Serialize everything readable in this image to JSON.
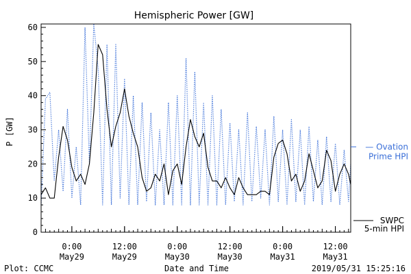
{
  "chart_data": {
    "type": "line",
    "title": "Hemispheric Power [GW]",
    "ylabel": "P [GW]",
    "xlabel": "Date and Time",
    "ylim": [
      0,
      61
    ],
    "xlim": [
      "2019-05-28 17:00",
      "2019-05-31 15:30"
    ],
    "y_ticks": [
      0,
      10,
      20,
      30,
      40,
      50,
      60
    ],
    "x_ticks": [
      {
        "time": "2019-05-29 00:00",
        "line1": "0:00",
        "line2": "May29"
      },
      {
        "time": "2019-05-29 12:00",
        "line1": "12:00",
        "line2": "May29"
      },
      {
        "time": "2019-05-30 00:00",
        "line1": "0:00",
        "line2": "May30"
      },
      {
        "time": "2019-05-30 12:00",
        "line1": "12:00",
        "line2": "May30"
      },
      {
        "time": "2019-05-31 00:00",
        "line1": "0:00",
        "line2": "May31"
      },
      {
        "time": "2019-05-31 12:00",
        "line1": "12:00",
        "line2": "May31"
      }
    ],
    "grid": false,
    "legend_position": "right",
    "series": [
      {
        "name": "SWPC 5-min HPI",
        "label_lines": [
          "SWPC",
          "5-min HPI"
        ],
        "color": "#000000",
        "style": "solid",
        "points": [
          [
            "2019-05-28 17:00",
            11
          ],
          [
            "2019-05-28 18:00",
            13
          ],
          [
            "2019-05-28 19:00",
            10
          ],
          [
            "2019-05-28 20:00",
            10
          ],
          [
            "2019-05-28 21:00",
            22
          ],
          [
            "2019-05-28 22:00",
            31
          ],
          [
            "2019-05-28 23:00",
            27
          ],
          [
            "2019-05-29 00:00",
            19
          ],
          [
            "2019-05-29 01:00",
            15
          ],
          [
            "2019-05-29 02:00",
            17
          ],
          [
            "2019-05-29 03:00",
            14
          ],
          [
            "2019-05-29 04:00",
            20
          ],
          [
            "2019-05-29 05:00",
            35
          ],
          [
            "2019-05-29 06:00",
            55
          ],
          [
            "2019-05-29 07:00",
            52
          ],
          [
            "2019-05-29 08:00",
            36
          ],
          [
            "2019-05-29 09:00",
            25
          ],
          [
            "2019-05-29 10:00",
            31
          ],
          [
            "2019-05-29 11:00",
            35
          ],
          [
            "2019-05-29 12:00",
            42
          ],
          [
            "2019-05-29 13:00",
            34
          ],
          [
            "2019-05-29 14:00",
            29
          ],
          [
            "2019-05-29 15:00",
            25
          ],
          [
            "2019-05-29 16:00",
            16
          ],
          [
            "2019-05-29 17:00",
            12
          ],
          [
            "2019-05-29 18:00",
            13
          ],
          [
            "2019-05-29 19:00",
            17
          ],
          [
            "2019-05-29 20:00",
            15
          ],
          [
            "2019-05-29 21:00",
            20
          ],
          [
            "2019-05-29 22:00",
            11
          ],
          [
            "2019-05-29 23:00",
            18
          ],
          [
            "2019-05-30 00:00",
            20
          ],
          [
            "2019-05-30 01:00",
            14
          ],
          [
            "2019-05-30 02:00",
            25
          ],
          [
            "2019-05-30 03:00",
            33
          ],
          [
            "2019-05-30 04:00",
            28
          ],
          [
            "2019-05-30 05:00",
            25
          ],
          [
            "2019-05-30 06:00",
            29
          ],
          [
            "2019-05-30 07:00",
            19
          ],
          [
            "2019-05-30 08:00",
            15
          ],
          [
            "2019-05-30 09:00",
            15
          ],
          [
            "2019-05-30 10:00",
            13
          ],
          [
            "2019-05-30 11:00",
            16
          ],
          [
            "2019-05-30 12:00",
            13
          ],
          [
            "2019-05-30 13:00",
            11
          ],
          [
            "2019-05-30 14:00",
            16
          ],
          [
            "2019-05-30 15:00",
            13
          ],
          [
            "2019-05-30 16:00",
            11
          ],
          [
            "2019-05-30 17:00",
            11
          ],
          [
            "2019-05-30 18:00",
            11
          ],
          [
            "2019-05-30 19:00",
            12
          ],
          [
            "2019-05-30 20:00",
            12
          ],
          [
            "2019-05-30 21:00",
            11
          ],
          [
            "2019-05-30 22:00",
            22
          ],
          [
            "2019-05-30 23:00",
            26
          ],
          [
            "2019-05-31 00:00",
            27
          ],
          [
            "2019-05-31 01:00",
            23
          ],
          [
            "2019-05-31 02:00",
            15
          ],
          [
            "2019-05-31 03:00",
            17
          ],
          [
            "2019-05-31 04:00",
            12
          ],
          [
            "2019-05-31 05:00",
            15
          ],
          [
            "2019-05-31 06:00",
            23
          ],
          [
            "2019-05-31 07:00",
            18
          ],
          [
            "2019-05-31 08:00",
            13
          ],
          [
            "2019-05-31 09:00",
            15
          ],
          [
            "2019-05-31 10:00",
            24
          ],
          [
            "2019-05-31 11:00",
            21
          ],
          [
            "2019-05-31 12:00",
            12
          ],
          [
            "2019-05-31 13:00",
            17
          ],
          [
            "2019-05-31 14:00",
            20
          ],
          [
            "2019-05-31 15:00",
            17
          ],
          [
            "2019-05-31 15:30",
            14
          ]
        ]
      },
      {
        "name": "Ovation Prime HPI",
        "label_lines": [
          "— Ovation",
          "Prime HPI"
        ],
        "color": "#3a6fd8",
        "style": "dotted",
        "points": [
          [
            "2019-05-28 17:00",
            8
          ],
          [
            "2019-05-28 18:00",
            39
          ],
          [
            "2019-05-28 19:00",
            41
          ],
          [
            "2019-05-28 20:00",
            15
          ],
          [
            "2019-05-28 21:00",
            30
          ],
          [
            "2019-05-28 22:00",
            12
          ],
          [
            "2019-05-28 23:00",
            36
          ],
          [
            "2019-05-29 00:00",
            10
          ],
          [
            "2019-05-29 01:00",
            25
          ],
          [
            "2019-05-29 02:00",
            8
          ],
          [
            "2019-05-29 03:00",
            60
          ],
          [
            "2019-05-29 04:00",
            20
          ],
          [
            "2019-05-29 05:00",
            61
          ],
          [
            "2019-05-29 06:00",
            48
          ],
          [
            "2019-05-29 07:00",
            8
          ],
          [
            "2019-05-29 08:00",
            55
          ],
          [
            "2019-05-29 09:00",
            8
          ],
          [
            "2019-05-29 10:00",
            55
          ],
          [
            "2019-05-29 11:00",
            10
          ],
          [
            "2019-05-29 12:00",
            45
          ],
          [
            "2019-05-29 13:00",
            8
          ],
          [
            "2019-05-29 14:00",
            40
          ],
          [
            "2019-05-29 15:00",
            8
          ],
          [
            "2019-05-29 16:00",
            38
          ],
          [
            "2019-05-29 17:00",
            9
          ],
          [
            "2019-05-29 18:00",
            35
          ],
          [
            "2019-05-29 19:00",
            8
          ],
          [
            "2019-05-29 20:00",
            30
          ],
          [
            "2019-05-29 21:00",
            8
          ],
          [
            "2019-05-29 22:00",
            38
          ],
          [
            "2019-05-29 23:00",
            8
          ],
          [
            "2019-05-30 00:00",
            40
          ],
          [
            "2019-05-30 01:00",
            8
          ],
          [
            "2019-05-30 02:00",
            51
          ],
          [
            "2019-05-30 03:00",
            8
          ],
          [
            "2019-05-30 04:00",
            47
          ],
          [
            "2019-05-30 05:00",
            8
          ],
          [
            "2019-05-30 06:00",
            38
          ],
          [
            "2019-05-30 07:00",
            8
          ],
          [
            "2019-05-30 08:00",
            40
          ],
          [
            "2019-05-30 09:00",
            8
          ],
          [
            "2019-05-30 10:00",
            36
          ],
          [
            "2019-05-30 11:00",
            8
          ],
          [
            "2019-05-30 12:00",
            32
          ],
          [
            "2019-05-30 13:00",
            9
          ],
          [
            "2019-05-30 14:00",
            30
          ],
          [
            "2019-05-30 15:00",
            8
          ],
          [
            "2019-05-30 16:00",
            35
          ],
          [
            "2019-05-30 17:00",
            9
          ],
          [
            "2019-05-30 18:00",
            31
          ],
          [
            "2019-05-30 19:00",
            10
          ],
          [
            "2019-05-30 20:00",
            30
          ],
          [
            "2019-05-30 21:00",
            8
          ],
          [
            "2019-05-30 22:00",
            34
          ],
          [
            "2019-05-30 23:00",
            9
          ],
          [
            "2019-05-31 00:00",
            30
          ],
          [
            "2019-05-31 01:00",
            8
          ],
          [
            "2019-05-31 02:00",
            33
          ],
          [
            "2019-05-31 03:00",
            9
          ],
          [
            "2019-05-31 04:00",
            30
          ],
          [
            "2019-05-31 05:00",
            8
          ],
          [
            "2019-05-31 06:00",
            31
          ],
          [
            "2019-05-31 07:00",
            9
          ],
          [
            "2019-05-31 08:00",
            27
          ],
          [
            "2019-05-31 09:00",
            8
          ],
          [
            "2019-05-31 10:00",
            28
          ],
          [
            "2019-05-31 11:00",
            9
          ],
          [
            "2019-05-31 12:00",
            26
          ],
          [
            "2019-05-31 13:00",
            8
          ],
          [
            "2019-05-31 14:00",
            24
          ],
          [
            "2019-05-31 15:00",
            9
          ],
          [
            "2019-05-31 15:30",
            20
          ]
        ]
      }
    ]
  },
  "footer": {
    "plot_credit": "Plot: CCMC",
    "timestamp": "2019/05/31  15:25:16"
  }
}
